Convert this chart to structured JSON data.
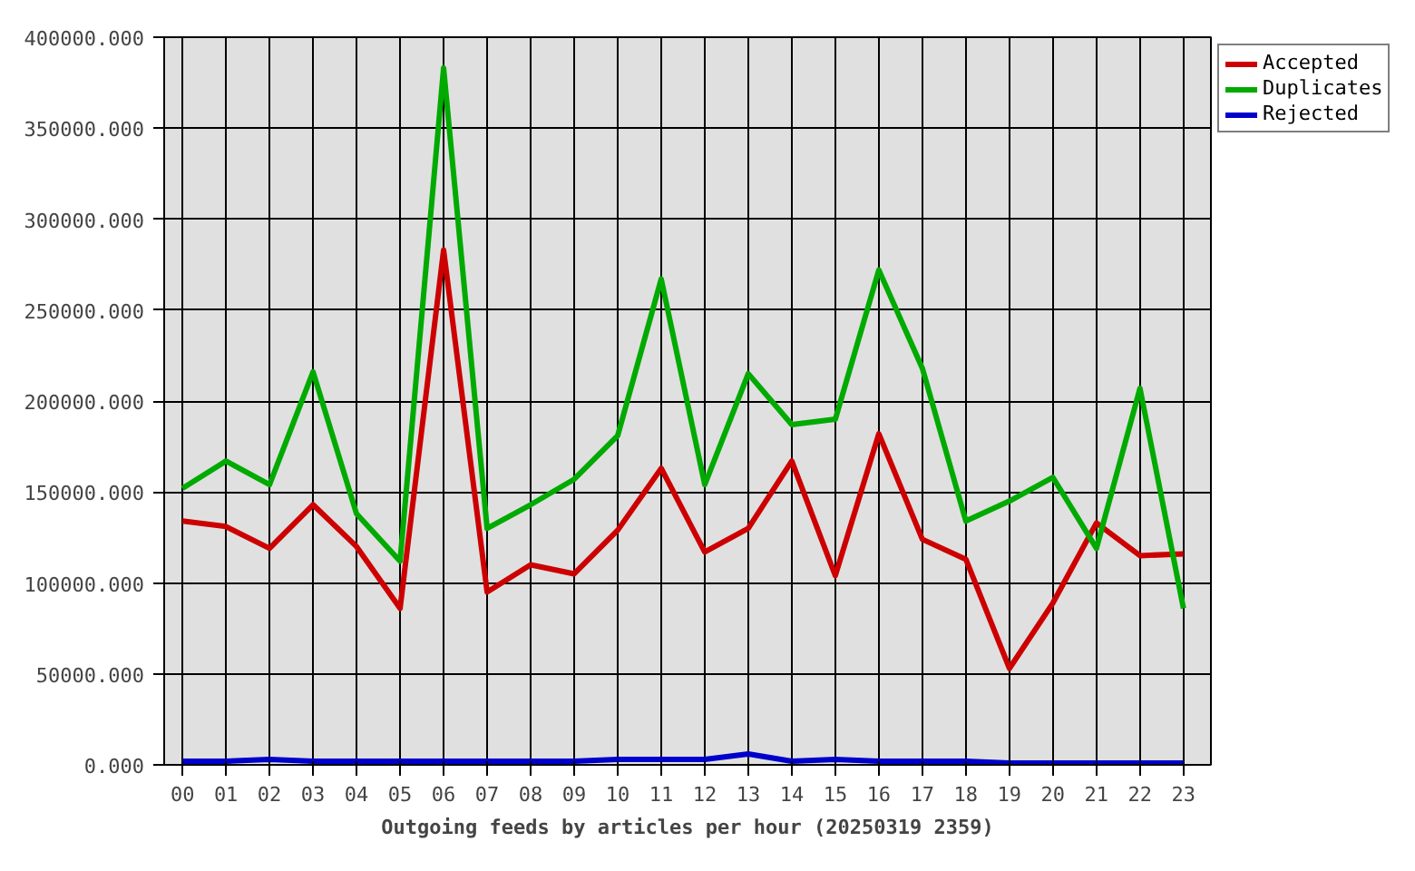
{
  "chart_data": {
    "type": "line",
    "xlabel": "Outgoing feeds by articles per hour (20250319 2359)",
    "categories": [
      "00",
      "01",
      "02",
      "03",
      "04",
      "05",
      "06",
      "07",
      "08",
      "09",
      "10",
      "11",
      "12",
      "13",
      "14",
      "15",
      "16",
      "17",
      "18",
      "19",
      "20",
      "21",
      "22",
      "23"
    ],
    "series": [
      {
        "name": "Accepted",
        "color": "#cc0000",
        "values": [
          134000,
          131000,
          119000,
          143000,
          120000,
          86000,
          283000,
          95000,
          110000,
          105000,
          129000,
          163000,
          117000,
          130000,
          167000,
          104000,
          182000,
          124000,
          113000,
          53000,
          89000,
          133000,
          115000,
          116000
        ]
      },
      {
        "name": "Duplicates",
        "color": "#00aa00",
        "values": [
          152000,
          167000,
          154000,
          216000,
          138000,
          112000,
          383000,
          130000,
          143000,
          157000,
          181000,
          267000,
          154000,
          215000,
          187000,
          190000,
          272000,
          218000,
          134000,
          145000,
          158000,
          119000,
          207000,
          86000
        ]
      },
      {
        "name": "Rejected",
        "color": "#0000cc",
        "values": [
          2000,
          2000,
          3000,
          2000,
          2000,
          2000,
          2000,
          2000,
          2000,
          2000,
          3000,
          3000,
          3000,
          6000,
          2000,
          3000,
          2000,
          2000,
          2000,
          1000,
          1000,
          1000,
          1000,
          1000
        ]
      }
    ],
    "ylim": [
      0,
      400000
    ],
    "yticks": [
      {
        "value": 0,
        "label": "0.000"
      },
      {
        "value": 50000,
        "label": "50000.000"
      },
      {
        "value": 100000,
        "label": "100000.000"
      },
      {
        "value": 150000,
        "label": "150000.000"
      },
      {
        "value": 200000,
        "label": "200000.000"
      },
      {
        "value": 250000,
        "label": "250000.000"
      },
      {
        "value": 300000,
        "label": "300000.000"
      },
      {
        "value": 350000,
        "label": "350000.000"
      },
      {
        "value": 400000,
        "label": "400000.000"
      }
    ],
    "grid": true,
    "legend": "top right",
    "marker": "none",
    "line_style": "solid"
  }
}
